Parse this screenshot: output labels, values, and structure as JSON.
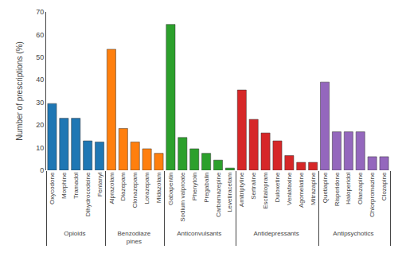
{
  "chart_data": {
    "type": "bar",
    "ylabel": "Number of prescriptions (%)",
    "ylim": [
      0,
      70
    ],
    "yticks": [
      0,
      10,
      20,
      30,
      40,
      50,
      60,
      70
    ],
    "grid": false,
    "series": [
      {
        "name": "Opioids",
        "categories": [
          "Oxycodone",
          "Morphine",
          "Tramadol",
          "Dihydrocodeine",
          "Fentanyl"
        ],
        "values": [
          29.5,
          23,
          23,
          13,
          12.5
        ]
      },
      {
        "name": "Benzodiaze\npines",
        "categories": [
          "Alprazolam",
          "Diazepam",
          "Clonazepam",
          "Lorazepam",
          "Midazolam"
        ],
        "values": [
          53.5,
          18.5,
          12.5,
          9.5,
          7.5
        ]
      },
      {
        "name": "Anticonvulsants",
        "categories": [
          "Gabapentin",
          "Sodium valproate",
          "Phenytoin",
          "Pregabalin",
          "Carbamazepine",
          "Levetiracetam"
        ],
        "values": [
          64.5,
          14.5,
          9.5,
          7.5,
          4.5,
          1
        ]
      },
      {
        "name": "Antidepressants",
        "categories": [
          "Amitriptyline",
          "Sertraline",
          "Escitalopram",
          "Duloxetine",
          "Venlafaxine",
          "Agomelatine",
          "Mitrazapine"
        ],
        "values": [
          35.5,
          22.5,
          16.5,
          13,
          6.5,
          3.5,
          3.5
        ]
      },
      {
        "name": "Antipsychotics",
        "categories": [
          "Quetiapine",
          "Risperidone",
          "Haloperidol",
          "Olanzapine",
          "Chlorpromazine",
          "Clozapine"
        ],
        "values": [
          39,
          17,
          17,
          17,
          6,
          6
        ]
      }
    ]
  }
}
